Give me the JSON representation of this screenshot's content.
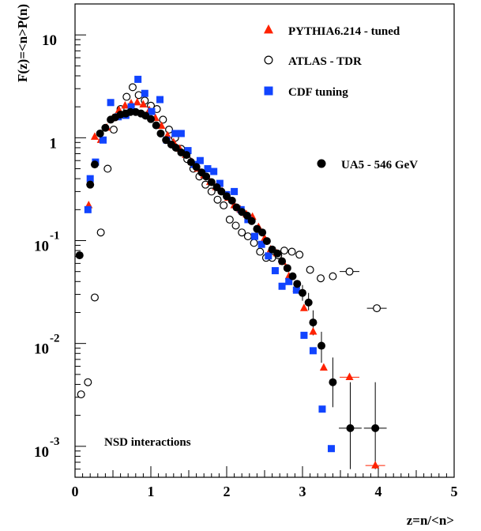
{
  "chart_data": {
    "type": "scatter",
    "title": "",
    "xlabel": "z=n/<n>",
    "ylabel": "F(z)=<n>P(n)",
    "xlim": [
      0,
      5
    ],
    "ylim": [
      0.0005,
      20
    ],
    "yscale": "log",
    "grid": false,
    "legend_position": "top-right",
    "x_ticks": [
      {
        "value": 0,
        "label": "0"
      },
      {
        "value": 1,
        "label": "1"
      },
      {
        "value": 2,
        "label": "2"
      },
      {
        "value": 3,
        "label": "3"
      },
      {
        "value": 4,
        "label": "4"
      },
      {
        "value": 5,
        "label": "5"
      }
    ],
    "y_ticks": [
      {
        "value": 10,
        "base": "10",
        "exp": ""
      },
      {
        "value": 1,
        "base": "1",
        "exp": ""
      },
      {
        "value": 0.1,
        "base": "10",
        "exp": "-1"
      },
      {
        "value": 0.01,
        "base": "10",
        "exp": "-2"
      },
      {
        "value": 0.001,
        "base": "10",
        "exp": "-3"
      }
    ],
    "annotation": "NSD interactions",
    "series": [
      {
        "name": "PYTHIA6.214 - tuned",
        "marker": "triangle",
        "color": "#ff2200",
        "points": [
          [
            0.18,
            0.22
          ],
          [
            0.26,
            1.02
          ],
          [
            0.34,
            0.95
          ],
          [
            0.42,
            1.25
          ],
          [
            0.5,
            1.55
          ],
          [
            0.58,
            1.85
          ],
          [
            0.66,
            2.05
          ],
          [
            0.74,
            2.15
          ],
          [
            0.82,
            2.2
          ],
          [
            0.9,
            2.1
          ],
          [
            0.98,
            1.85
          ],
          [
            1.06,
            1.55
          ],
          [
            1.14,
            1.3
          ],
          [
            1.22,
            1.05
          ],
          [
            1.3,
            0.9
          ],
          [
            1.38,
            0.78
          ],
          [
            1.46,
            0.68
          ],
          [
            1.54,
            0.58
          ],
          [
            1.62,
            0.5
          ],
          [
            1.7,
            0.43
          ],
          [
            1.78,
            0.37
          ],
          [
            1.86,
            0.33
          ],
          [
            1.94,
            0.3
          ],
          [
            2.02,
            0.26
          ],
          [
            2.1,
            0.22
          ],
          [
            2.18,
            0.2
          ],
          [
            2.26,
            0.18
          ],
          [
            2.34,
            0.17
          ],
          [
            2.42,
            0.135
          ],
          [
            2.5,
            0.105
          ],
          [
            2.58,
            0.082
          ],
          [
            2.66,
            0.075
          ],
          [
            2.74,
            0.062
          ],
          [
            2.82,
            0.045
          ],
          [
            2.92,
            0.034
          ],
          [
            3.02,
            0.022
          ],
          [
            3.14,
            0.013
          ],
          [
            3.28,
            0.0058
          ],
          [
            3.62,
            0.0047
          ],
          [
            3.96,
            0.00065
          ]
        ],
        "x_err": [
          [
            3.62,
            0.13
          ],
          [
            3.96,
            0.13
          ]
        ]
      },
      {
        "name": "ATLAS - TDR",
        "marker": "open-circle",
        "color": "#000000",
        "points": [
          [
            0.08,
            0.0032
          ],
          [
            0.17,
            0.0042
          ],
          [
            0.26,
            0.028
          ],
          [
            0.34,
            0.12
          ],
          [
            0.43,
            0.5
          ],
          [
            0.51,
            1.2
          ],
          [
            0.6,
            1.9
          ],
          [
            0.68,
            2.5
          ],
          [
            0.76,
            3.1
          ],
          [
            0.84,
            2.6
          ],
          [
            0.92,
            2.3
          ],
          [
            1.0,
            2.05
          ],
          [
            1.08,
            1.9
          ],
          [
            1.16,
            1.5
          ],
          [
            1.24,
            1.2
          ],
          [
            1.32,
            1.0
          ],
          [
            1.4,
            0.78
          ],
          [
            1.48,
            0.62
          ],
          [
            1.56,
            0.5
          ],
          [
            1.64,
            0.42
          ],
          [
            1.72,
            0.35
          ],
          [
            1.8,
            0.3
          ],
          [
            1.88,
            0.25
          ],
          [
            1.96,
            0.22
          ],
          [
            2.04,
            0.16
          ],
          [
            2.12,
            0.14
          ],
          [
            2.2,
            0.12
          ],
          [
            2.28,
            0.11
          ],
          [
            2.36,
            0.095
          ],
          [
            2.44,
            0.078
          ],
          [
            2.52,
            0.068
          ],
          [
            2.6,
            0.068
          ],
          [
            2.68,
            0.072
          ],
          [
            2.76,
            0.08
          ],
          [
            2.86,
            0.078
          ],
          [
            2.96,
            0.073
          ],
          [
            3.1,
            0.052
          ],
          [
            3.24,
            0.043
          ],
          [
            3.4,
            0.045
          ],
          [
            3.62,
            0.05
          ],
          [
            3.98,
            0.022
          ]
        ],
        "x_err": [
          [
            3.62,
            0.13
          ],
          [
            3.98,
            0.13
          ]
        ]
      },
      {
        "name": "CDF tuning",
        "marker": "square",
        "color": "#1144ff",
        "points": [
          [
            0.17,
            0.2
          ],
          [
            0.2,
            0.4
          ],
          [
            0.27,
            0.58
          ],
          [
            0.37,
            0.95
          ],
          [
            0.47,
            2.2
          ],
          [
            0.57,
            1.6
          ],
          [
            0.67,
            1.65
          ],
          [
            0.74,
            2.0
          ],
          [
            0.83,
            3.7
          ],
          [
            0.92,
            2.7
          ],
          [
            1.01,
            1.8
          ],
          [
            1.12,
            2.35
          ],
          [
            1.21,
            0.95
          ],
          [
            1.32,
            1.1
          ],
          [
            1.4,
            1.1
          ],
          [
            1.49,
            0.75
          ],
          [
            1.57,
            0.55
          ],
          [
            1.65,
            0.6
          ],
          [
            1.75,
            0.5
          ],
          [
            1.83,
            0.47
          ],
          [
            1.91,
            0.36
          ],
          [
            2.0,
            0.28
          ],
          [
            2.1,
            0.3
          ],
          [
            2.19,
            0.2
          ],
          [
            2.28,
            0.16
          ],
          [
            2.37,
            0.11
          ],
          [
            2.46,
            0.092
          ],
          [
            2.55,
            0.071
          ],
          [
            2.64,
            0.051
          ],
          [
            2.73,
            0.036
          ],
          [
            2.82,
            0.04
          ],
          [
            2.92,
            0.033
          ],
          [
            3.02,
            0.012
          ],
          [
            3.14,
            0.0085
          ],
          [
            3.26,
            0.0023
          ],
          [
            3.38,
            0.00095
          ],
          [
            3.62,
            0.0004
          ]
        ]
      },
      {
        "name": "UA5 - 546 GeV",
        "marker": "filled-circle",
        "color": "#000000",
        "points": [
          [
            0.06,
            0.072
          ],
          [
            0.2,
            0.35
          ],
          [
            0.26,
            0.55
          ],
          [
            0.33,
            1.1
          ],
          [
            0.4,
            1.25
          ],
          [
            0.47,
            1.5
          ],
          [
            0.53,
            1.58
          ],
          [
            0.6,
            1.68
          ],
          [
            0.67,
            1.72
          ],
          [
            0.73,
            1.78
          ],
          [
            0.8,
            1.78
          ],
          [
            0.87,
            1.72
          ],
          [
            0.93,
            1.64
          ],
          [
            1.0,
            1.52
          ],
          [
            1.07,
            1.32
          ],
          [
            1.13,
            1.1
          ],
          [
            1.2,
            0.95
          ],
          [
            1.27,
            0.86
          ],
          [
            1.33,
            0.8
          ],
          [
            1.4,
            0.72
          ],
          [
            1.47,
            0.68
          ],
          [
            1.53,
            0.58
          ],
          [
            1.6,
            0.52
          ],
          [
            1.67,
            0.46
          ],
          [
            1.73,
            0.42
          ],
          [
            1.8,
            0.37
          ],
          [
            1.87,
            0.33
          ],
          [
            1.93,
            0.3
          ],
          [
            2.0,
            0.27
          ],
          [
            2.07,
            0.245
          ],
          [
            2.13,
            0.21
          ],
          [
            2.2,
            0.19
          ],
          [
            2.27,
            0.175
          ],
          [
            2.33,
            0.155
          ],
          [
            2.4,
            0.13
          ],
          [
            2.47,
            0.12
          ],
          [
            2.53,
            0.099
          ],
          [
            2.6,
            0.082
          ],
          [
            2.67,
            0.075
          ],
          [
            2.73,
            0.063
          ],
          [
            2.8,
            0.054
          ],
          [
            2.87,
            0.045
          ],
          [
            2.93,
            0.038
          ],
          [
            3.0,
            0.031
          ],
          [
            3.08,
            0.025
          ],
          [
            3.14,
            0.016
          ],
          [
            3.25,
            0.0095
          ],
          [
            3.4,
            0.0042
          ],
          [
            3.63,
            0.0015
          ],
          [
            3.96,
            0.0015
          ]
        ],
        "error_bars": [
          [
            3.0,
            0.026,
            0.037
          ],
          [
            3.08,
            0.021,
            0.031
          ],
          [
            3.14,
            0.012,
            0.021
          ],
          [
            3.25,
            0.0065,
            0.013
          ],
          [
            3.4,
            0.0024,
            0.0073
          ],
          [
            3.63,
            0.0006,
            0.0042
          ],
          [
            3.96,
            0.0006,
            0.0042
          ]
        ],
        "x_err": [
          [
            3.63,
            0.15
          ],
          [
            3.96,
            0.15
          ]
        ]
      }
    ]
  }
}
